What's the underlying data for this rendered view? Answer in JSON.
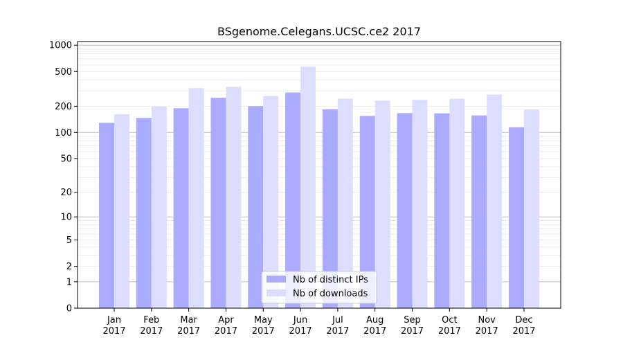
{
  "chart_data": {
    "type": "bar",
    "title": "BSgenome.Celegans.UCSC.ce2 2017",
    "xlabel": "",
    "ylabel": "",
    "y_scale": "log(1+y)",
    "ylim": [
      0,
      1000
    ],
    "y_ticks": [
      0,
      1,
      2,
      5,
      10,
      20,
      50,
      100,
      200,
      500,
      1000
    ],
    "y_tick_labels": [
      "0",
      "1",
      "2",
      "5",
      "10",
      "20",
      "50",
      "100",
      "200",
      "500",
      "1000"
    ],
    "categories": [
      [
        "Jan",
        "2017"
      ],
      [
        "Feb",
        "2017"
      ],
      [
        "Mar",
        "2017"
      ],
      [
        "Apr",
        "2017"
      ],
      [
        "May",
        "2017"
      ],
      [
        "Jun",
        "2017"
      ],
      [
        "Jul",
        "2017"
      ],
      [
        "Aug",
        "2017"
      ],
      [
        "Sep",
        "2017"
      ],
      [
        "Oct",
        "2017"
      ],
      [
        "Nov",
        "2017"
      ],
      [
        "Dec",
        "2017"
      ]
    ],
    "series": [
      {
        "name": "Nb of distinct IPs",
        "color": "#aaaaff",
        "values": [
          129,
          147,
          190,
          250,
          201,
          288,
          185,
          155,
          167,
          166,
          157,
          115
        ]
      },
      {
        "name": "Nb of downloads",
        "color": "#ddddff",
        "values": [
          162,
          198,
          323,
          335,
          262,
          569,
          245,
          232,
          237,
          244,
          273,
          184
        ]
      }
    ],
    "grid": true,
    "legend_position": "bottom-center"
  }
}
